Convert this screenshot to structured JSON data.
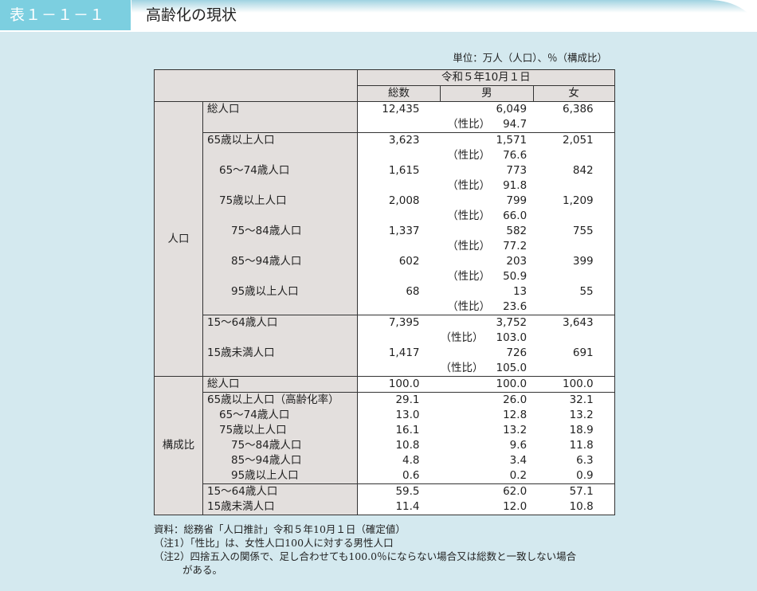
{
  "header": {
    "table_number": "表１－１－１",
    "title": "高齢化の現状"
  },
  "unit": "単位：万人（人口）、％（構成比）",
  "table": {
    "date_header": "令和５年10月１日",
    "columns": [
      "総数",
      "男",
      "女"
    ],
    "ratio_label": "（性比）",
    "sections": [
      {
        "category": "人口",
        "groups": [
          {
            "rows": [
              {
                "label": "総人口",
                "indent": 0,
                "values": [
                  "12,435",
                  "6,049",
                  "6,386"
                ],
                "sex_ratio": "94.7"
              }
            ]
          },
          {
            "rows": [
              {
                "label": "65歳以上人口",
                "indent": 0,
                "values": [
                  "3,623",
                  "1,571",
                  "2,051"
                ],
                "sex_ratio": "76.6"
              },
              {
                "label": "65～74歳人口",
                "indent": 1,
                "values": [
                  "1,615",
                  "773",
                  "842"
                ],
                "sex_ratio": "91.8"
              },
              {
                "label": "75歳以上人口",
                "indent": 1,
                "values": [
                  "2,008",
                  "799",
                  "1,209"
                ],
                "sex_ratio": "66.0"
              },
              {
                "label": "75～84歳人口",
                "indent": 2,
                "values": [
                  "1,337",
                  "582",
                  "755"
                ],
                "sex_ratio": "77.2"
              },
              {
                "label": "85～94歳人口",
                "indent": 2,
                "values": [
                  "602",
                  "203",
                  "399"
                ],
                "sex_ratio": "50.9"
              },
              {
                "label": "95歳以上人口",
                "indent": 2,
                "values": [
                  "68",
                  "13",
                  "55"
                ],
                "sex_ratio": "23.6"
              }
            ]
          },
          {
            "rows": [
              {
                "label": "15～64歳人口",
                "indent": 0,
                "values": [
                  "7,395",
                  "3,752",
                  "3,643"
                ],
                "sex_ratio": "103.0"
              },
              {
                "label": "15歳未満人口",
                "indent": 0,
                "values": [
                  "1,417",
                  "726",
                  "691"
                ],
                "sex_ratio": "105.0"
              }
            ]
          }
        ]
      },
      {
        "category": "構成比",
        "groups": [
          {
            "rows": [
              {
                "label": "総人口",
                "indent": 0,
                "values": [
                  "100.0",
                  "100.0",
                  "100.0"
                ]
              }
            ]
          },
          {
            "rows": [
              {
                "label": "65歳以上人口（高齢化率）",
                "indent": 0,
                "values": [
                  "29.1",
                  "26.0",
                  "32.1"
                ]
              },
              {
                "label": "65～74歳人口",
                "indent": 1,
                "values": [
                  "13.0",
                  "12.8",
                  "13.2"
                ]
              },
              {
                "label": "75歳以上人口",
                "indent": 1,
                "values": [
                  "16.1",
                  "13.2",
                  "18.9"
                ]
              },
              {
                "label": "75～84歳人口",
                "indent": 2,
                "values": [
                  "10.8",
                  "9.6",
                  "11.8"
                ]
              },
              {
                "label": "85～94歳人口",
                "indent": 2,
                "values": [
                  "4.8",
                  "3.4",
                  "6.3"
                ]
              },
              {
                "label": "95歳以上人口",
                "indent": 2,
                "values": [
                  "0.6",
                  "0.2",
                  "0.9"
                ]
              }
            ]
          },
          {
            "rows": [
              {
                "label": "15～64歳人口",
                "indent": 0,
                "values": [
                  "59.5",
                  "62.0",
                  "57.1"
                ]
              },
              {
                "label": "15歳未満人口",
                "indent": 0,
                "values": [
                  "11.4",
                  "12.0",
                  "10.8"
                ]
              }
            ]
          }
        ]
      }
    ]
  },
  "notes": {
    "source": "資料：総務省「人口推計」令和５年10月１日（確定値）",
    "note1": "（注1）「性比」は、女性人口100人に対する男性人口",
    "note2": "（注2）四捨五入の関係で、足し合わせても100.0％にならない場合又は総数と一致しない場合",
    "note2_cont": "がある。"
  },
  "colors": {
    "accent": "#7ccfe0",
    "background": "#d4e9ef",
    "header_cell": "#e3dfdd"
  }
}
